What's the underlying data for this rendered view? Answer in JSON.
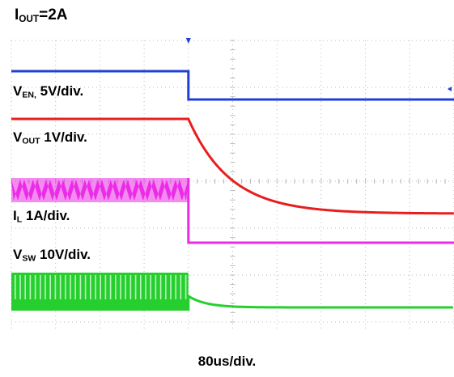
{
  "condition": {
    "label": "I",
    "sub": "OUT",
    "value": "=2A"
  },
  "timebase": "80us/div.",
  "colors": {
    "en": "#1f3fd6",
    "vout": "#e81e1e",
    "il": "#ea2ce6",
    "vsw": "#25d02e",
    "grid": "#b8b8b8"
  },
  "chart_data": {
    "type": "line",
    "title": "",
    "xlabel": "80us/div.",
    "x_unit": "div",
    "x_range": [
      0,
      10
    ],
    "event_at_div": 4,
    "grid": true,
    "series": [
      {
        "key": "en",
        "label_main": "V",
        "label_sub": "EN,",
        "label_rest": " 5V/div.",
        "before": "high",
        "after": "low"
      },
      {
        "key": "vout",
        "label_main": "V",
        "label_sub": "OUT",
        "label_rest": "  1V/div.",
        "before": "steady",
        "after": "exponential decay"
      },
      {
        "key": "il",
        "label_main": "I",
        "label_sub": "L",
        "label_rest": " 1A/div.",
        "before": "triangular ripple",
        "after": "zero"
      },
      {
        "key": "vsw",
        "label_main": "V",
        "label_sub": "SW",
        "label_rest": " 10V/div.",
        "before": "switching pulses",
        "after": "off"
      }
    ]
  }
}
